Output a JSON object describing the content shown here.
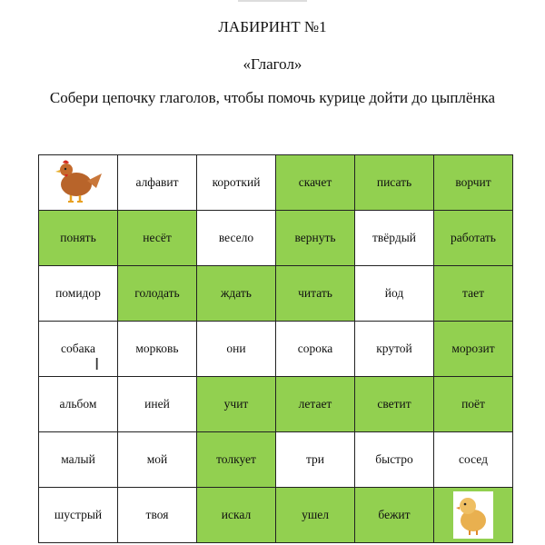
{
  "title": "ЛАБИРИНТ №1",
  "subtitle": "«Глагол»",
  "instruction": "Собери цепочку глаголов, чтобы помочь курице дойти до цыплёнка",
  "colors": {
    "path": "#92d050",
    "empty": "#ffffff"
  },
  "grid": [
    [
      {
        "text": "",
        "image": "hen",
        "green": false
      },
      {
        "text": "алфавит",
        "green": false
      },
      {
        "text": "короткий",
        "green": false
      },
      {
        "text": "скачет",
        "green": true
      },
      {
        "text": "писать",
        "green": true
      },
      {
        "text": "ворчит",
        "green": true
      }
    ],
    [
      {
        "text": "понять",
        "green": true
      },
      {
        "text": "несёт",
        "green": true
      },
      {
        "text": "весело",
        "green": false
      },
      {
        "text": "вернуть",
        "green": true
      },
      {
        "text": "твёрдый",
        "green": false
      },
      {
        "text": "работать",
        "green": true
      }
    ],
    [
      {
        "text": "помидор",
        "green": false
      },
      {
        "text": "голодать",
        "green": true
      },
      {
        "text": "ждать",
        "green": true
      },
      {
        "text": "читать",
        "green": true
      },
      {
        "text": "йод",
        "green": false
      },
      {
        "text": "тает",
        "green": true
      }
    ],
    [
      {
        "text": "собака",
        "green": false
      },
      {
        "text": "морковь",
        "green": false
      },
      {
        "text": "они",
        "green": false
      },
      {
        "text": "сорока",
        "green": false
      },
      {
        "text": "крутой",
        "green": false
      },
      {
        "text": "морозит",
        "green": true
      }
    ],
    [
      {
        "text": "альбом",
        "green": false
      },
      {
        "text": "иней",
        "green": false
      },
      {
        "text": "учит",
        "green": true
      },
      {
        "text": "летает",
        "green": true
      },
      {
        "text": "светит",
        "green": true
      },
      {
        "text": "поёт",
        "green": true
      }
    ],
    [
      {
        "text": "малый",
        "green": false
      },
      {
        "text": "мой",
        "green": false
      },
      {
        "text": "толкует",
        "green": true
      },
      {
        "text": "три",
        "green": false
      },
      {
        "text": "быстро",
        "green": false
      },
      {
        "text": "сосед",
        "green": false
      }
    ],
    [
      {
        "text": "шустрый",
        "green": false
      },
      {
        "text": "твоя",
        "green": false
      },
      {
        "text": "искал",
        "green": true
      },
      {
        "text": "ушел",
        "green": true
      },
      {
        "text": "бежит",
        "green": true
      },
      {
        "text": "",
        "image": "chick",
        "green": true
      }
    ]
  ]
}
